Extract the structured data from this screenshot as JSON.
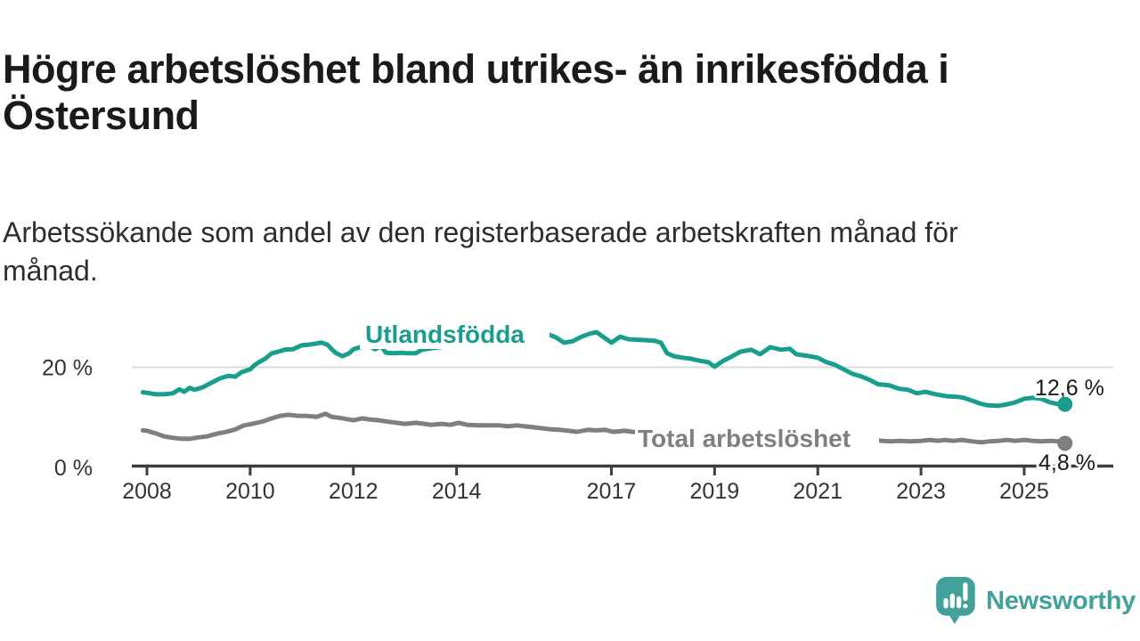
{
  "header": {
    "title_line1": "Högre arbetslöshet bland utrikes- än inrikesfödda i",
    "title_line2": "Östersund",
    "subtitle_line1": "Arbetssökande som andel av den registerbaserade arbetskraften månad för",
    "subtitle_line2": "månad."
  },
  "chart_data": {
    "type": "line",
    "x_axis": {
      "ticks": [
        2008,
        2010,
        2012,
        2014,
        2017,
        2019,
        2021,
        2023,
        2025
      ],
      "range": [
        2007.9,
        2026.7
      ]
    },
    "y_axis": {
      "unit": "%",
      "range": [
        0,
        30
      ],
      "ticks": [
        {
          "value": 0,
          "label": "0 %"
        },
        {
          "value": 20,
          "label": "20 %"
        }
      ]
    },
    "grid_lines": [
      20
    ],
    "series": [
      {
        "name": "Utlandsfödda",
        "color": "#199e8e",
        "end_value": 12.6,
        "end_label": "12,6 %",
        "points": [
          [
            2007.92,
            15.0
          ],
          [
            2008.0,
            14.9
          ],
          [
            2008.17,
            14.6
          ],
          [
            2008.33,
            14.6
          ],
          [
            2008.5,
            14.8
          ],
          [
            2008.63,
            15.6
          ],
          [
            2008.72,
            15.1
          ],
          [
            2008.83,
            15.9
          ],
          [
            2008.92,
            15.5
          ],
          [
            2009.08,
            16.0
          ],
          [
            2009.25,
            16.9
          ],
          [
            2009.42,
            17.8
          ],
          [
            2009.58,
            18.3
          ],
          [
            2009.71,
            18.1
          ],
          [
            2009.83,
            19.0
          ],
          [
            2010.0,
            19.6
          ],
          [
            2010.08,
            20.4
          ],
          [
            2010.17,
            21.0
          ],
          [
            2010.29,
            21.7
          ],
          [
            2010.42,
            22.8
          ],
          [
            2010.54,
            23.1
          ],
          [
            2010.67,
            23.5
          ],
          [
            2010.83,
            23.6
          ],
          [
            2011.0,
            24.4
          ],
          [
            2011.13,
            24.5
          ],
          [
            2011.25,
            24.7
          ],
          [
            2011.38,
            24.9
          ],
          [
            2011.5,
            24.5
          ],
          [
            2011.58,
            23.6
          ],
          [
            2011.67,
            22.8
          ],
          [
            2011.79,
            22.2
          ],
          [
            2011.92,
            22.8
          ],
          [
            2012.0,
            23.6
          ],
          [
            2012.13,
            24.0
          ],
          [
            2012.29,
            24.4
          ],
          [
            2012.42,
            23.6
          ],
          [
            2012.54,
            24.2
          ],
          [
            2012.63,
            22.9
          ],
          [
            2012.79,
            22.8
          ],
          [
            2012.92,
            22.9
          ],
          [
            2013.04,
            22.8
          ],
          [
            2013.21,
            22.8
          ],
          [
            2013.33,
            23.5
          ],
          [
            2013.58,
            23.9
          ],
          [
            2013.83,
            24.2
          ],
          [
            2014.08,
            24.5
          ],
          [
            2014.33,
            24.8
          ],
          [
            2014.58,
            25.1
          ],
          [
            2014.83,
            25.4
          ],
          [
            2015.08,
            25.7
          ],
          [
            2015.33,
            26.0
          ],
          [
            2015.58,
            26.4
          ],
          [
            2015.75,
            26.7
          ],
          [
            2015.92,
            26.0
          ],
          [
            2016.08,
            24.9
          ],
          [
            2016.25,
            25.2
          ],
          [
            2016.42,
            26.1
          ],
          [
            2016.58,
            26.7
          ],
          [
            2016.71,
            27.0
          ],
          [
            2016.88,
            25.8
          ],
          [
            2017.0,
            24.9
          ],
          [
            2017.17,
            26.1
          ],
          [
            2017.33,
            25.6
          ],
          [
            2017.5,
            25.5
          ],
          [
            2017.67,
            25.4
          ],
          [
            2017.83,
            25.3
          ],
          [
            2017.96,
            24.9
          ],
          [
            2018.08,
            22.8
          ],
          [
            2018.21,
            22.2
          ],
          [
            2018.38,
            21.9
          ],
          [
            2018.54,
            21.7
          ],
          [
            2018.71,
            21.3
          ],
          [
            2018.88,
            21.0
          ],
          [
            2019.0,
            20.1
          ],
          [
            2019.17,
            21.3
          ],
          [
            2019.29,
            21.9
          ],
          [
            2019.5,
            23.1
          ],
          [
            2019.71,
            23.5
          ],
          [
            2019.88,
            22.6
          ],
          [
            2020.08,
            24.0
          ],
          [
            2020.29,
            23.5
          ],
          [
            2020.46,
            23.7
          ],
          [
            2020.58,
            22.6
          ],
          [
            2020.79,
            22.3
          ],
          [
            2021.0,
            21.9
          ],
          [
            2021.17,
            21.0
          ],
          [
            2021.33,
            20.5
          ],
          [
            2021.5,
            19.6
          ],
          [
            2021.67,
            18.7
          ],
          [
            2021.83,
            18.2
          ],
          [
            2022.0,
            17.5
          ],
          [
            2022.17,
            16.6
          ],
          [
            2022.38,
            16.4
          ],
          [
            2022.58,
            15.7
          ],
          [
            2022.75,
            15.5
          ],
          [
            2022.92,
            14.8
          ],
          [
            2023.08,
            15.1
          ],
          [
            2023.29,
            14.6
          ],
          [
            2023.5,
            14.2
          ],
          [
            2023.71,
            14.1
          ],
          [
            2023.83,
            13.9
          ],
          [
            2024.0,
            13.3
          ],
          [
            2024.13,
            12.8
          ],
          [
            2024.29,
            12.4
          ],
          [
            2024.5,
            12.3
          ],
          [
            2024.67,
            12.6
          ],
          [
            2024.83,
            13.0
          ],
          [
            2025.0,
            13.7
          ],
          [
            2025.17,
            13.9
          ],
          [
            2025.33,
            13.7
          ],
          [
            2025.5,
            13.0
          ],
          [
            2025.67,
            12.6
          ],
          [
            2025.79,
            12.6
          ]
        ]
      },
      {
        "name": "Total arbetslöshet",
        "color": "#7f7f7f",
        "end_value": 4.8,
        "end_label": "4,8 %",
        "points": [
          [
            2007.92,
            7.4
          ],
          [
            2008.0,
            7.3
          ],
          [
            2008.17,
            6.8
          ],
          [
            2008.33,
            6.2
          ],
          [
            2008.5,
            5.9
          ],
          [
            2008.67,
            5.7
          ],
          [
            2008.83,
            5.7
          ],
          [
            2009.0,
            6.0
          ],
          [
            2009.17,
            6.2
          ],
          [
            2009.38,
            6.8
          ],
          [
            2009.54,
            7.1
          ],
          [
            2009.71,
            7.6
          ],
          [
            2009.88,
            8.4
          ],
          [
            2010.04,
            8.7
          ],
          [
            2010.25,
            9.2
          ],
          [
            2010.42,
            9.8
          ],
          [
            2010.58,
            10.3
          ],
          [
            2010.75,
            10.5
          ],
          [
            2010.92,
            10.3
          ],
          [
            2011.08,
            10.3
          ],
          [
            2011.29,
            10.1
          ],
          [
            2011.46,
            10.7
          ],
          [
            2011.58,
            10.1
          ],
          [
            2011.79,
            9.8
          ],
          [
            2012.0,
            9.4
          ],
          [
            2012.17,
            9.8
          ],
          [
            2012.29,
            9.6
          ],
          [
            2012.5,
            9.4
          ],
          [
            2012.63,
            9.2
          ],
          [
            2012.83,
            8.9
          ],
          [
            2013.0,
            8.7
          ],
          [
            2013.21,
            8.9
          ],
          [
            2013.38,
            8.7
          ],
          [
            2013.5,
            8.5
          ],
          [
            2013.71,
            8.7
          ],
          [
            2013.88,
            8.5
          ],
          [
            2014.04,
            8.9
          ],
          [
            2014.21,
            8.5
          ],
          [
            2014.42,
            8.4
          ],
          [
            2014.63,
            8.4
          ],
          [
            2014.83,
            8.4
          ],
          [
            2015.0,
            8.2
          ],
          [
            2015.17,
            8.4
          ],
          [
            2015.33,
            8.2
          ],
          [
            2015.5,
            8.0
          ],
          [
            2015.67,
            7.8
          ],
          [
            2015.83,
            7.6
          ],
          [
            2016.0,
            7.5
          ],
          [
            2016.17,
            7.3
          ],
          [
            2016.33,
            7.1
          ],
          [
            2016.54,
            7.5
          ],
          [
            2016.71,
            7.4
          ],
          [
            2016.88,
            7.5
          ],
          [
            2017.04,
            7.1
          ],
          [
            2017.25,
            7.3
          ],
          [
            2017.42,
            7.1
          ],
          [
            2017.63,
            7.0
          ],
          [
            2017.83,
            6.9
          ],
          [
            2018.08,
            6.7
          ],
          [
            2018.33,
            6.5
          ],
          [
            2018.63,
            6.3
          ],
          [
            2019.0,
            6.1
          ],
          [
            2019.42,
            5.9
          ],
          [
            2019.83,
            6.0
          ],
          [
            2020.17,
            6.8
          ],
          [
            2020.5,
            7.0
          ],
          [
            2020.83,
            6.8
          ],
          [
            2021.08,
            6.4
          ],
          [
            2021.5,
            6.0
          ],
          [
            2021.83,
            5.7
          ],
          [
            2022.04,
            5.5
          ],
          [
            2022.25,
            5.3
          ],
          [
            2022.42,
            5.2
          ],
          [
            2022.58,
            5.3
          ],
          [
            2022.79,
            5.2
          ],
          [
            2023.0,
            5.3
          ],
          [
            2023.17,
            5.5
          ],
          [
            2023.33,
            5.3
          ],
          [
            2023.46,
            5.5
          ],
          [
            2023.63,
            5.3
          ],
          [
            2023.79,
            5.5
          ],
          [
            2024.0,
            5.2
          ],
          [
            2024.17,
            5.0
          ],
          [
            2024.33,
            5.2
          ],
          [
            2024.5,
            5.3
          ],
          [
            2024.67,
            5.5
          ],
          [
            2024.83,
            5.3
          ],
          [
            2025.0,
            5.5
          ],
          [
            2025.17,
            5.3
          ],
          [
            2025.33,
            5.2
          ],
          [
            2025.5,
            5.3
          ],
          [
            2025.67,
            5.2
          ],
          [
            2025.79,
            4.8
          ]
        ]
      }
    ],
    "colors": {
      "grid": "#d9d9d9",
      "axis": "#3d3d3d",
      "tick_label": "#333333",
      "value_label": "#1a1a1a"
    }
  },
  "branding": {
    "logo_text": "Newsworthy",
    "logo_color": "#42a19a",
    "logo_icon": "newsworthy-speech-bubble-bar-chart-icon"
  }
}
